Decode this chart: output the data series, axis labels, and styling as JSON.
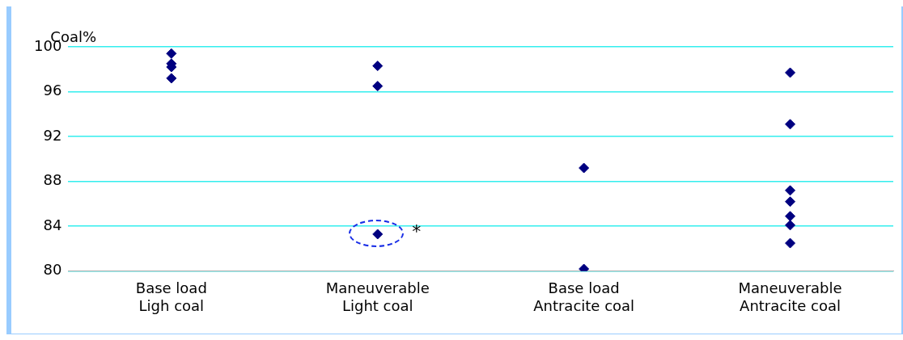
{
  "chart_data": {
    "type": "scatter",
    "ylabel": "Coal%",
    "categories": [
      "Base load\nLigh coal",
      "Maneuverable\nLight coal",
      "Base load\nAntracite coal",
      "Maneuverable\nAntracite coal"
    ],
    "series": [
      {
        "color": "#000080",
        "x": [
          "Base load\nLigh coal",
          "Base load\nLigh coal",
          "Base load\nLigh coal",
          "Base load\nLigh coal",
          "Maneuverable\nLight coal",
          "Maneuverable\nLight coal",
          "Maneuverable\nLight coal",
          "Base load\nAntracite coal",
          "Base load\nAntracite coal",
          "Maneuverable\nAntracite coal",
          "Maneuverable\nAntracite coal",
          "Maneuverable\nAntracite coal",
          "Maneuverable\nAntracite coal",
          "Maneuverable\nAntracite coal",
          "Maneuverable\nAntracite coal",
          "Maneuverable\nAntracite coal"
        ],
        "values": [
          99.4,
          98.5,
          98.2,
          97.2,
          98.3,
          96.5,
          83.3,
          89.2,
          80.2,
          97.7,
          93.1,
          87.2,
          86.2,
          84.9,
          84.1,
          82.5
        ]
      }
    ],
    "ylim": [
      80,
      100
    ],
    "yticks": [
      80,
      84,
      88,
      92,
      96,
      100
    ],
    "grid": "y",
    "legend": false,
    "marker": "diamond",
    "annotations": [
      {
        "text": "*",
        "x": "Maneuverable\nLight coal",
        "y": 84
      }
    ]
  }
}
